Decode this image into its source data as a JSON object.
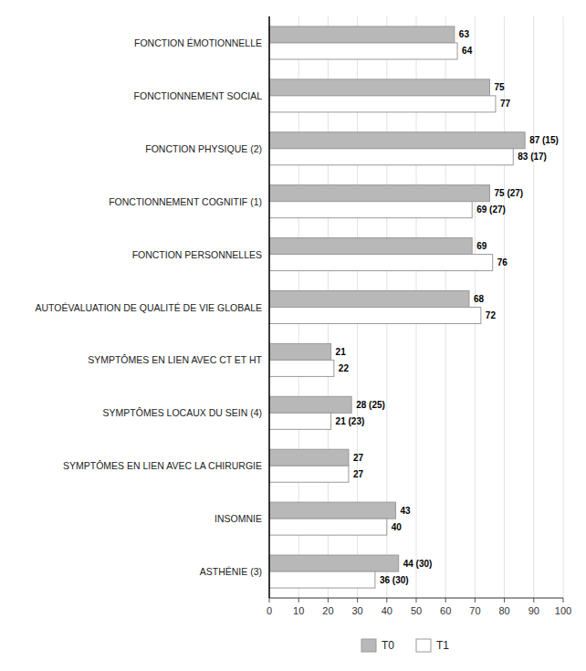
{
  "chart_data": {
    "type": "bar",
    "orientation": "horizontal",
    "categories": [
      "ASTHÉNIE (3)",
      "INSOMNIE",
      "SYMPTÔMES EN LIEN AVEC LA CHIRURGIE",
      "SYMPTÔMES LOCAUX DU SEIN (4)",
      "SYMPTÔMES EN LIEN AVEC CT ET HT",
      "AUTOÉVALUATION DE QUALITÉ DE VIE GLOBALE",
      "FONCTION PERSONNELLES",
      "FONCTIONNEMENT COGNITIF (1)",
      "FONCTION PHYSIQUE (2)",
      "FONCTIONNEMENT SOCIAL",
      "FONCTION ÉMOTIONNELLE"
    ],
    "series": [
      {
        "name": "T0",
        "color": "#b8b8b8",
        "values": [
          44,
          43,
          27,
          28,
          21,
          68,
          69,
          75,
          87,
          75,
          63
        ],
        "value_labels": [
          "44 (30)",
          "43",
          "27",
          "28 (25)",
          "21",
          "68",
          "69",
          "75 (27)",
          "87 (15)",
          "75",
          "63"
        ]
      },
      {
        "name": "T1",
        "color": "#ffffff",
        "values": [
          36,
          40,
          27,
          21,
          22,
          72,
          76,
          69,
          83,
          77,
          64
        ],
        "value_labels": [
          "36 (30)",
          "40",
          "27",
          "21 (23)",
          "22",
          "72",
          "76",
          "69 (27)",
          "83 (17)",
          "77",
          "64"
        ]
      }
    ],
    "xlim": [
      0,
      100
    ],
    "xticks": [
      0,
      10,
      20,
      30,
      40,
      50,
      60,
      70,
      80,
      90,
      100
    ],
    "grid": true,
    "legend": "bottom",
    "data_labels": true
  }
}
